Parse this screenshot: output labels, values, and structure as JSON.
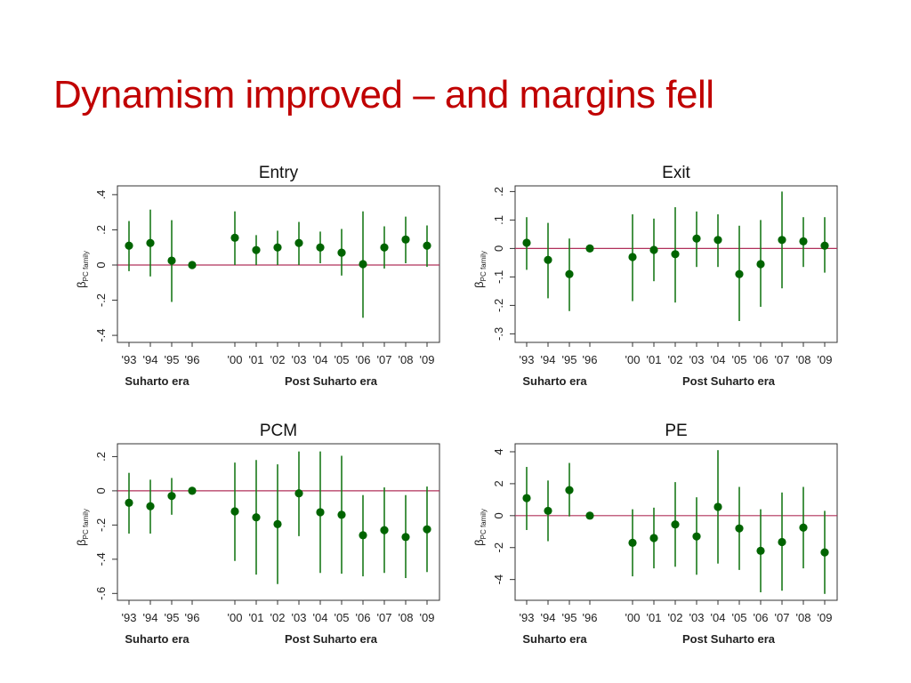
{
  "slide": {
    "title": "Dynamism improved – and margins fell"
  },
  "colors": {
    "title": "#c00000",
    "marker": "#006400",
    "ci_line": "#1a7a1a",
    "zero_line": "#b0305a",
    "axis": "#333333"
  },
  "chart_data": [
    {
      "type": "scatter",
      "title": "Entry",
      "ylabel": "β",
      "ylabel_sub": "PC family",
      "categories": [
        "'93",
        "'94",
        "'95",
        "'96",
        "'00",
        "'01",
        "'02",
        "'03",
        "'04",
        "'05",
        "'06",
        "'07",
        "'08",
        "'09"
      ],
      "groups": [
        "Suharto era",
        "Post Suharto era"
      ],
      "yticks": [
        ".4",
        ".2",
        "0",
        "-.2",
        "-.4"
      ],
      "ylim": [
        -0.44,
        0.45
      ],
      "grid": false,
      "reference_line": 0,
      "series": [
        {
          "values": [
            0.11,
            0.125,
            0.025,
            0.0,
            0.155,
            0.085,
            0.1,
            0.125,
            0.1,
            0.07,
            0.005,
            0.1,
            0.145,
            0.11
          ],
          "ci_low": [
            -0.035,
            -0.065,
            -0.21,
            0.0,
            0.0,
            0.0,
            0.0,
            0.0,
            0.01,
            -0.06,
            -0.3,
            -0.02,
            0.01,
            -0.01
          ],
          "ci_high": [
            0.25,
            0.315,
            0.255,
            0.0,
            0.305,
            0.17,
            0.195,
            0.245,
            0.19,
            0.205,
            0.305,
            0.22,
            0.275,
            0.225
          ]
        }
      ]
    },
    {
      "type": "scatter",
      "title": "Exit",
      "ylabel": "β",
      "ylabel_sub": "PC family",
      "categories": [
        "'93",
        "'94",
        "'95",
        "'96",
        "'00",
        "'01",
        "'02",
        "'03",
        "'04",
        "'05",
        "'06",
        "'07",
        "'08",
        "'09"
      ],
      "groups": [
        "Suharto era",
        "Post Suharto era"
      ],
      "yticks": [
        ".2",
        ".1",
        "0",
        "-.1",
        "-.2",
        "-.3"
      ],
      "ylim": [
        -0.33,
        0.22
      ],
      "grid": false,
      "reference_line": 0,
      "series": [
        {
          "values": [
            0.02,
            -0.04,
            -0.09,
            0.0,
            -0.03,
            -0.005,
            -0.02,
            0.035,
            0.03,
            -0.09,
            -0.055,
            0.03,
            0.025,
            0.01
          ],
          "ci_low": [
            -0.075,
            -0.175,
            -0.22,
            0.0,
            -0.185,
            -0.115,
            -0.19,
            -0.065,
            -0.065,
            -0.255,
            -0.205,
            -0.14,
            -0.065,
            -0.085
          ],
          "ci_high": [
            0.11,
            0.09,
            0.035,
            0.0,
            0.12,
            0.105,
            0.145,
            0.13,
            0.12,
            0.08,
            0.1,
            0.2,
            0.11,
            0.11
          ]
        }
      ]
    },
    {
      "type": "scatter",
      "title": "PCM",
      "ylabel": "β",
      "ylabel_sub": "PC family",
      "categories": [
        "'93",
        "'94",
        "'95",
        "'96",
        "'00",
        "'01",
        "'02",
        "'03",
        "'04",
        "'05",
        "'06",
        "'07",
        "'08",
        "'09"
      ],
      "groups": [
        "Suharto era",
        "Post Suharto era"
      ],
      "yticks": [
        ".2",
        "0",
        "-.2",
        "-.4",
        "-.6"
      ],
      "ylim": [
        -0.64,
        0.275
      ],
      "grid": false,
      "reference_line": 0,
      "series": [
        {
          "values": [
            -0.07,
            -0.09,
            -0.03,
            0.0,
            -0.12,
            -0.155,
            -0.195,
            -0.015,
            -0.125,
            -0.14,
            -0.26,
            -0.23,
            -0.27,
            -0.225
          ],
          "ci_low": [
            -0.25,
            -0.25,
            -0.14,
            0.0,
            -0.41,
            -0.49,
            -0.545,
            -0.265,
            -0.48,
            -0.485,
            -0.5,
            -0.48,
            -0.51,
            -0.475
          ],
          "ci_high": [
            0.105,
            0.065,
            0.075,
            0.0,
            0.165,
            0.18,
            0.155,
            0.23,
            0.23,
            0.205,
            -0.025,
            0.02,
            -0.025,
            0.025
          ]
        }
      ]
    },
    {
      "type": "scatter",
      "title": "PE",
      "ylabel": "β",
      "ylabel_sub": "PC family",
      "categories": [
        "'93",
        "'94",
        "'95",
        "'96",
        "'00",
        "'01",
        "'02",
        "'03",
        "'04",
        "'05",
        "'06",
        "'07",
        "'08",
        "'09"
      ],
      "groups": [
        "Suharto era",
        "Post Suharto era"
      ],
      "yticks": [
        "4",
        "2",
        "0",
        "-2",
        "-4"
      ],
      "ylim": [
        -5.3,
        4.5
      ],
      "grid": false,
      "reference_line": 0,
      "series": [
        {
          "values": [
            1.1,
            0.3,
            1.6,
            0.0,
            -1.7,
            -1.4,
            -0.55,
            -1.3,
            0.55,
            -0.8,
            -2.2,
            -1.65,
            -0.75,
            -2.3
          ],
          "ci_low": [
            -0.9,
            -1.6,
            -0.05,
            0.0,
            -3.8,
            -3.3,
            -3.2,
            -3.7,
            -3.0,
            -3.4,
            -4.8,
            -4.7,
            -3.3,
            -4.9
          ],
          "ci_high": [
            3.05,
            2.2,
            3.3,
            0.0,
            0.4,
            0.5,
            2.1,
            1.15,
            4.1,
            1.8,
            0.4,
            1.45,
            1.8,
            0.3
          ]
        }
      ]
    }
  ]
}
